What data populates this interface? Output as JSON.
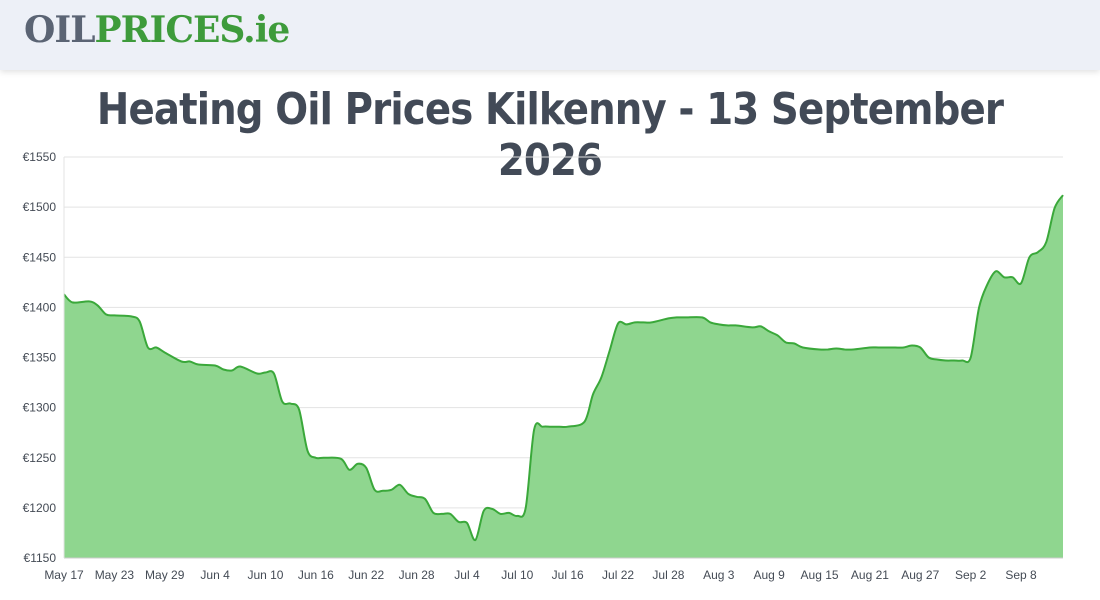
{
  "logo": {
    "oil": "OIL",
    "prices": "PRICES",
    "ie": ".ie"
  },
  "title": "Heating Oil Prices Kilkenny - 13 September 2026",
  "colors": {
    "line": "#3aa83a",
    "fill": "#8fd68f",
    "grid": "#e3e3e3",
    "title": "#424a57"
  },
  "chart_data": {
    "type": "area",
    "title": "Heating Oil Prices Kilkenny - 13 September 2026",
    "xlabel": "",
    "ylabel": "",
    "ylim": [
      1150,
      1550
    ],
    "yticks": [
      1150,
      1200,
      1250,
      1300,
      1350,
      1400,
      1450,
      1500,
      1550
    ],
    "ytick_labels": [
      "€1150",
      "€1200",
      "€1250",
      "€1300",
      "€1350",
      "€1400",
      "€1450",
      "€1500",
      "€1550"
    ],
    "xlim": [
      0,
      119
    ],
    "xtick_labels": [
      "May 17",
      "May 23",
      "May 29",
      "Jun 4",
      "Jun 10",
      "Jun 16",
      "Jun 22",
      "Jun 28",
      "Jul 4",
      "Jul 10",
      "Jul 16",
      "Jul 22",
      "Jul 28",
      "Aug 3",
      "Aug 9",
      "Aug 15",
      "Aug 21",
      "Aug 27",
      "Sep 2",
      "Sep 8"
    ],
    "xtick_positions": [
      0,
      6,
      12,
      18,
      24,
      30,
      36,
      42,
      48,
      54,
      60,
      66,
      72,
      78,
      84,
      90,
      96,
      102,
      108,
      114
    ],
    "grid": true,
    "legend": "none",
    "series": [
      {
        "x": [
          0,
          1,
          3,
          4,
          5,
          6,
          8,
          9,
          10,
          11,
          12,
          14,
          15,
          16,
          18,
          19,
          20,
          21,
          23,
          24,
          25,
          26,
          27,
          28,
          29,
          30,
          31,
          33,
          34,
          35,
          36,
          37,
          38,
          39,
          40,
          41,
          42,
          43,
          44,
          45,
          46,
          47,
          48,
          49,
          50,
          51,
          52,
          53,
          54,
          55,
          56,
          57,
          58,
          59,
          60,
          62,
          63,
          64,
          65,
          66,
          67,
          68,
          69,
          70,
          72,
          73,
          74,
          76,
          77,
          78,
          79,
          80,
          82,
          83,
          84,
          85,
          86,
          87,
          88,
          90,
          91,
          92,
          93,
          94,
          96,
          97,
          98,
          99,
          100,
          101,
          102,
          103,
          104,
          105,
          106,
          107,
          108,
          109,
          110,
          111,
          112,
          113,
          114,
          115,
          116,
          117,
          118,
          119
        ],
        "y": [
          1413,
          1405,
          1406,
          1402,
          1393,
          1392,
          1391,
          1386,
          1360,
          1360,
          1355,
          1346,
          1346,
          1343,
          1342,
          1338,
          1337,
          1341,
          1334,
          1335,
          1334,
          1306,
          1304,
          1298,
          1257,
          1250,
          1250,
          1249,
          1238,
          1244,
          1240,
          1218,
          1217,
          1218,
          1223,
          1214,
          1211,
          1209,
          1195,
          1194,
          1194,
          1186,
          1185,
          1168,
          1197,
          1199,
          1194,
          1195,
          1192,
          1200,
          1278,
          1281,
          1281,
          1281,
          1281,
          1286,
          1313,
          1330,
          1357,
          1384,
          1383,
          1385,
          1385,
          1385,
          1389,
          1390,
          1390,
          1390,
          1385,
          1383,
          1382,
          1382,
          1380,
          1381,
          1376,
          1372,
          1365,
          1364,
          1360,
          1358,
          1358,
          1359,
          1358,
          1358,
          1360,
          1360,
          1360,
          1360,
          1360,
          1362,
          1360,
          1350,
          1348,
          1347,
          1347,
          1347,
          1350,
          1400,
          1423,
          1436,
          1430,
          1430,
          1424,
          1450,
          1455,
          1465,
          1499,
          1512
        ]
      }
    ]
  }
}
